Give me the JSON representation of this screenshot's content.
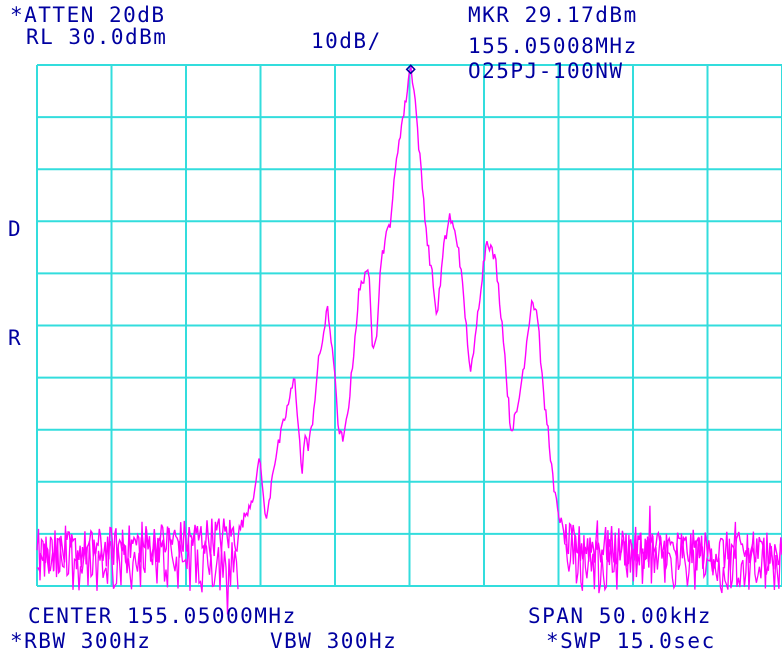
{
  "header": {
    "atten": "*ATTEN 20dB",
    "ref_level": "RL 30.0dBm",
    "scale": "10dB/",
    "marker_level": "MKR 29.17dBm",
    "marker_freq": "155.05008MHz",
    "label": "O25PJ-100NW"
  },
  "side_flags": {
    "d": "D",
    "r": "R"
  },
  "footer": {
    "center": "CENTER 155.05000MHz",
    "span": "SPAN 50.00kHz",
    "rbw": "*RBW 300Hz",
    "vbw": "VBW 300Hz",
    "sweep": "*SWP 15.0sec"
  },
  "colors": {
    "grid": "#33dddd",
    "trace": "#ff00ff",
    "text": "#0000a0",
    "marker": "#0000a0",
    "background": "#ffffff"
  },
  "chart_data": {
    "type": "line",
    "title": "",
    "xlabel": "",
    "ylabel": "",
    "x_unit": "kHz offset from center",
    "y_unit": "dBm",
    "xlim": [
      -25,
      25
    ],
    "ylim": [
      -70,
      30
    ],
    "grid": true,
    "grid_divisions": {
      "x": 10,
      "y": 10
    },
    "marker": {
      "x": 0.08,
      "y": 29.17
    },
    "noise_floor": {
      "mean": -65,
      "spread": 6,
      "x_ranges": [
        [
          -25,
          -11.5
        ],
        [
          10.5,
          25
        ]
      ]
    },
    "series": [
      {
        "x": [
          -25,
          -11.5,
          -10.3,
          -10.1,
          -9.9,
          -9.7,
          -9.5,
          -9.2,
          -8.8,
          -8.3,
          -7.7,
          -7.2,
          -7.0,
          -6.8,
          -6.5,
          -6.1,
          -5.5,
          -5.1,
          -4.9,
          -4.7,
          -4.4,
          -4.0,
          -3.4,
          -2.9,
          -2.7,
          -2.5,
          -2.2,
          -1.9,
          -1.3,
          -0.7,
          -0.3,
          0,
          0.1,
          0.3,
          0.7,
          1.2,
          1.6,
          1.8,
          2.0,
          2.3,
          2.7,
          3.3,
          3.9,
          4.1,
          4.3,
          4.5,
          4.8,
          5.2,
          5.8,
          6.3,
          6.5,
          6.8,
          7.2,
          7.7,
          8.2,
          8.6,
          8.8,
          9.0,
          9.3,
          9.7,
          10.5,
          25
        ],
        "y": [
          -64,
          -60,
          -51,
          -45,
          -49,
          -57,
          -56,
          -48,
          -43,
          -37,
          -30,
          -49,
          -40,
          -44,
          -38,
          -27,
          -17,
          -26,
          -35,
          -41,
          -42,
          -33,
          -14,
          -9,
          -12,
          -24,
          -21,
          -7,
          0,
          16,
          22,
          29,
          29,
          26,
          12,
          -4,
          -12,
          -18,
          -14,
          -5,
          1,
          -5,
          -23,
          -29,
          -26,
          -20,
          -12,
          -3,
          -8,
          -22,
          -30,
          -40,
          -37,
          -27,
          -15,
          -18,
          -26,
          -34,
          -40,
          -52,
          -62,
          -64
        ]
      }
    ]
  }
}
